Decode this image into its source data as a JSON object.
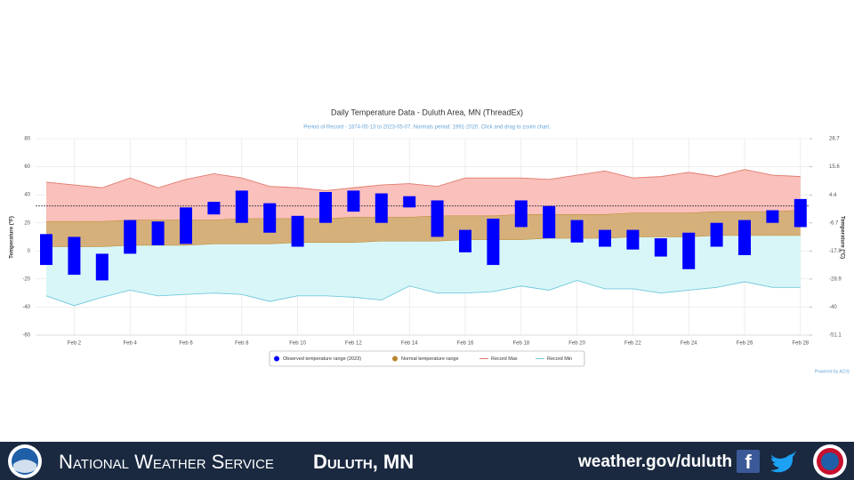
{
  "chart_data": {
    "type": "temperature-range",
    "title": "Daily Temperature Data - Duluth Area, MN (ThreadEx)",
    "subtitle": "Period of Record - 1874-05-13 to 2023-05-07. Normals period: 1991-2020. Click and drag to zoom chart.",
    "y_label": "Temperature (°F)",
    "y2_label": "Temperature (°C)",
    "credit": "Powered by ACIS",
    "categories": [
      null,
      "Feb 2",
      null,
      "Feb 4",
      null,
      "Feb 6",
      null,
      "Feb 8",
      null,
      "Feb 10",
      null,
      "Feb 12",
      null,
      "Feb 14",
      null,
      "Feb 16",
      null,
      "Feb 18",
      null,
      "Feb 20",
      null,
      "Feb 22",
      null,
      "Feb 24",
      null,
      "Feb 26",
      null,
      "Feb 28"
    ],
    "ylim": [
      -60,
      80
    ],
    "yticks": [
      -60,
      -40,
      -20,
      0,
      20,
      40,
      60,
      80
    ],
    "y2lim": [
      -51.1,
      26.7
    ],
    "y2ticks": [
      -51.1,
      -40,
      -28.9,
      -17.8,
      -6.7,
      4.4,
      15.6,
      26.7
    ],
    "freezing_line": 32,
    "grid": true,
    "series": [
      {
        "name": "Observed temperature range (2023)",
        "color": "#0000ff",
        "high": [
          12,
          10,
          -2,
          22,
          21,
          31,
          35,
          43,
          34,
          25,
          42,
          43,
          41,
          39,
          36,
          15,
          23,
          36,
          32,
          22,
          15,
          15,
          9,
          13,
          20,
          22,
          29,
          37
        ],
        "low": [
          -10,
          -17,
          -21,
          -2,
          4,
          5,
          26,
          20,
          13,
          3,
          20,
          28,
          20,
          31,
          10,
          -1,
          -10,
          17,
          9,
          6,
          3,
          1,
          -4,
          -13,
          3,
          -3,
          20,
          17
        ]
      },
      {
        "name": "Normal temperature range",
        "color": "#b8862e",
        "high": [
          21,
          21,
          21,
          22,
          22,
          22,
          22,
          23,
          23,
          23,
          23,
          24,
          24,
          24,
          25,
          25,
          25,
          26,
          26,
          26,
          26,
          27,
          27,
          27,
          28,
          28,
          28,
          29
        ],
        "low": [
          3,
          3,
          3,
          4,
          4,
          4,
          5,
          5,
          5,
          6,
          6,
          6,
          7,
          7,
          7,
          8,
          8,
          8,
          9,
          9,
          9,
          10,
          10,
          10,
          11,
          11,
          11,
          11
        ]
      },
      {
        "name": "Record Max",
        "color": "#e07b6f",
        "values": [
          49,
          47,
          45,
          52,
          45,
          51,
          55,
          52,
          46,
          45,
          43,
          45,
          47,
          48,
          46,
          52,
          52,
          52,
          51,
          54,
          57,
          52,
          53,
          56,
          53,
          58,
          54,
          53
        ]
      },
      {
        "name": "Record Min",
        "color": "#72c9dc",
        "values": [
          -32,
          -39,
          -33,
          -28,
          -32,
          -31,
          -30,
          -31,
          -36,
          -32,
          -32,
          -33,
          -35,
          -25,
          -30,
          -30,
          -29,
          -25,
          -28,
          -21,
          -27,
          -27,
          -30,
          -28,
          -26,
          -22,
          -26,
          -26
        ]
      }
    ]
  },
  "footer": {
    "agency": "National Weather Service",
    "office": "Duluth, MN",
    "url": "weather.gov/duluth"
  }
}
